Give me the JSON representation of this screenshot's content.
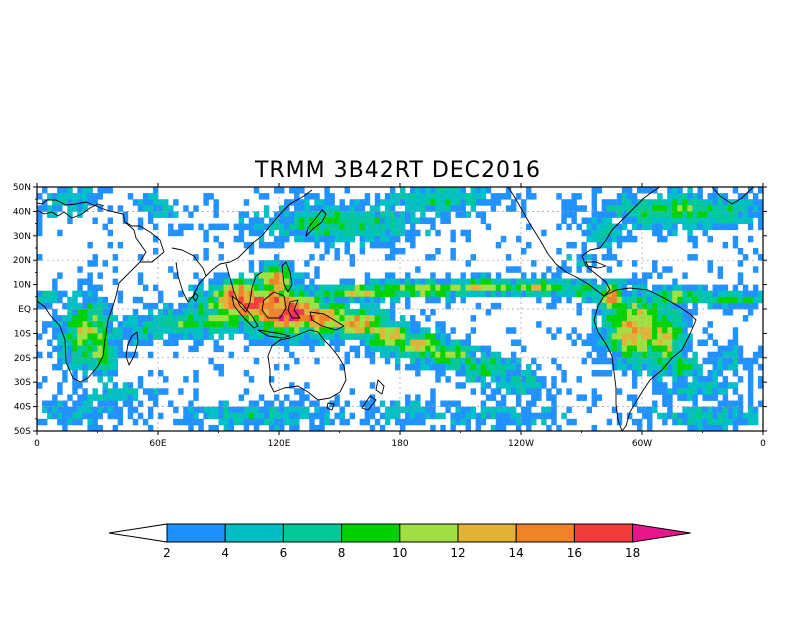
{
  "title": "TRMM 3B42RT DEC2016",
  "lat_labels": [
    "50N",
    "40N",
    "30N",
    "20N",
    "10N",
    "EQ",
    "10S",
    "20S",
    "30S",
    "40S",
    "50S"
  ],
  "lon_labels": [
    "0",
    "60E",
    "120E",
    "180",
    "120W",
    "60W",
    "0"
  ],
  "colorbar": {
    "tick_labels": [
      "2",
      "4",
      "6",
      "8",
      "10",
      "12",
      "14",
      "16",
      "18"
    ],
    "colors": [
      "#1e90ff",
      "#00bfc4",
      "#00c896",
      "#00d200",
      "#9ee040",
      "#e2b236",
      "#f08228",
      "#f53c3c",
      "#e8168c"
    ],
    "under_color": "#ffffff"
  },
  "map": {
    "lon_range": [
      0,
      360
    ],
    "lat_range": [
      -50,
      50
    ],
    "grid": true,
    "palette": {
      "bg": "#ffffff",
      "lvl1": "#1e90ff",
      "lvl2": "#00bfc4",
      "lvl3": "#00c896",
      "lvl4": "#00d200",
      "lvl5": "#9ee040",
      "lvl6": "#e2b236",
      "lvl7": "#f08228",
      "lvl8": "#f53c3c",
      "lvl9": "#e8168c"
    }
  }
}
